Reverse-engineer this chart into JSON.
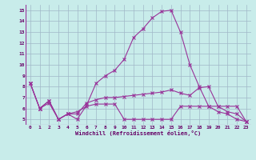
{
  "background_color": "#c8ecea",
  "grid_color": "#a0b8c8",
  "line_color": "#993399",
  "xlabel": "Windchill (Refroidissement éolien,°C)",
  "xlim_min": -0.5,
  "xlim_max": 23.5,
  "ylim_min": 4.5,
  "ylim_max": 15.5,
  "yticks": [
    5,
    6,
    7,
    8,
    9,
    10,
    11,
    12,
    13,
    14,
    15
  ],
  "xticks": [
    0,
    1,
    2,
    3,
    4,
    5,
    6,
    7,
    8,
    9,
    10,
    11,
    12,
    13,
    14,
    15,
    16,
    17,
    18,
    19,
    20,
    21,
    22,
    23
  ],
  "series1": [
    8.3,
    6.0,
    6.5,
    5.0,
    5.5,
    5.0,
    6.3,
    8.3,
    9.0,
    9.5,
    10.5,
    12.5,
    13.3,
    14.3,
    14.9,
    15.0,
    13.0,
    10.0,
    8.0,
    6.2,
    5.7,
    5.5,
    5.0,
    4.8
  ],
  "series2": [
    8.3,
    6.0,
    6.7,
    5.0,
    5.5,
    5.5,
    6.5,
    6.8,
    7.0,
    7.0,
    7.1,
    7.2,
    7.3,
    7.4,
    7.5,
    7.7,
    7.4,
    7.2,
    7.9,
    8.0,
    6.2,
    5.7,
    5.5,
    4.8
  ],
  "series3": [
    8.3,
    6.0,
    6.7,
    5.0,
    5.5,
    5.7,
    6.2,
    6.4,
    6.4,
    6.4,
    5.0,
    5.0,
    5.0,
    5.0,
    5.0,
    5.0,
    6.2,
    6.2,
    6.2,
    6.2,
    6.2,
    6.2,
    6.2,
    4.8
  ]
}
